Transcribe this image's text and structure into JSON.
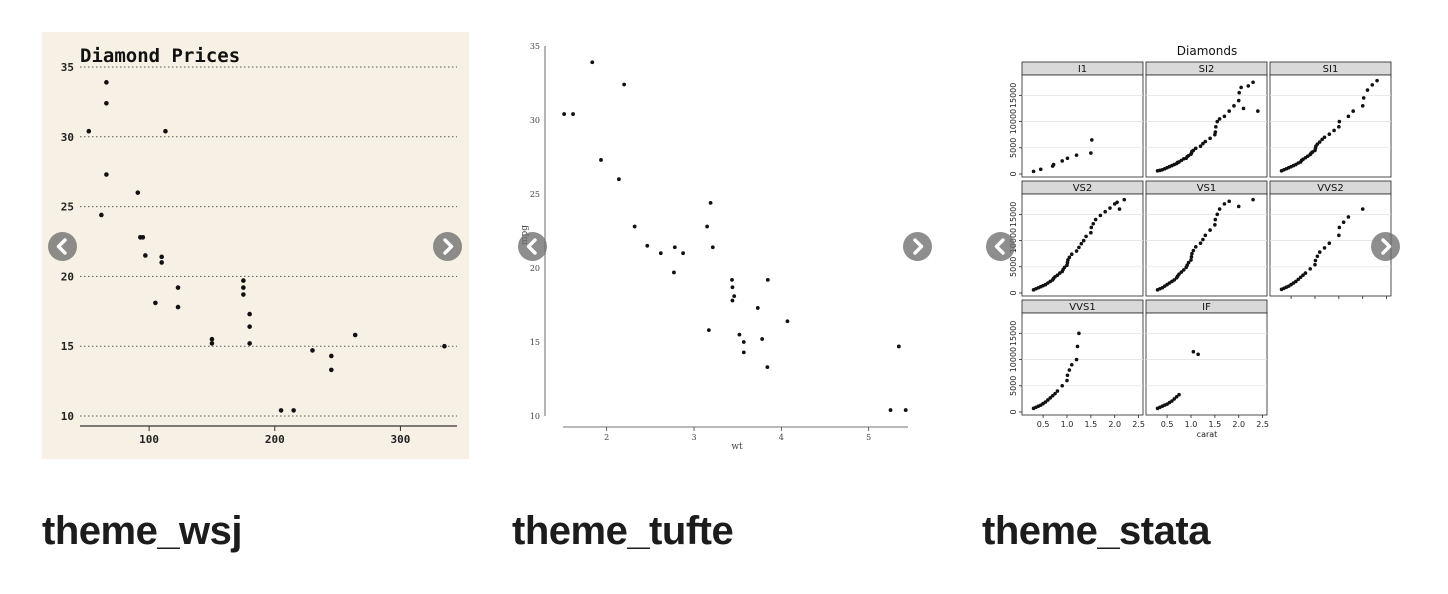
{
  "cards": [
    {
      "caption": "theme_wsj"
    },
    {
      "caption": "theme_tufte"
    },
    {
      "caption": "theme_stata"
    }
  ],
  "icons": {
    "prev": "chevron-left-circle-icon",
    "next": "chevron-right-circle-icon"
  },
  "colors": {
    "wsj_bg": "#f7f0e4",
    "caption": "#1c1c1c",
    "arrow": "#6e6e6e",
    "strip": "#d9d9d9"
  },
  "chart_data": [
    {
      "type": "scatter",
      "title": "Diamond Prices",
      "xlabel": "",
      "ylabel": "",
      "xlim": [
        45,
        345
      ],
      "ylim": [
        9.5,
        35.5
      ],
      "xticks": [
        100,
        200,
        300
      ],
      "yticks": [
        10,
        15,
        20,
        25,
        30,
        35
      ],
      "grid": "horizontal dotted",
      "x": [
        52,
        62,
        66,
        66,
        66,
        91,
        93,
        95,
        97,
        105,
        110,
        110,
        113,
        123,
        123,
        150,
        150,
        175,
        175,
        175,
        180,
        180,
        180,
        205,
        215,
        230,
        245,
        245,
        264,
        335
      ],
      "y": [
        30.4,
        24.4,
        33.9,
        32.4,
        27.3,
        26.0,
        22.8,
        22.8,
        21.5,
        18.1,
        21.4,
        21.0,
        30.4,
        19.2,
        17.8,
        15.5,
        15.2,
        19.7,
        19.2,
        18.7,
        17.3,
        16.4,
        15.2,
        10.4,
        10.4,
        14.7,
        14.3,
        13.3,
        15.8,
        15.0
      ]
    },
    {
      "type": "scatter",
      "title": "",
      "xlabel": "wt",
      "ylabel": "mpg",
      "xlim": [
        1.5,
        5.45
      ],
      "ylim": [
        10,
        35
      ],
      "xticks": [
        2,
        3,
        4,
        5
      ],
      "yticks": [
        10,
        15,
        20,
        25,
        30,
        35
      ],
      "grid": "none",
      "x": [
        1.513,
        1.615,
        1.835,
        1.935,
        2.14,
        2.2,
        2.32,
        2.465,
        2.62,
        2.77,
        2.78,
        2.875,
        3.15,
        3.17,
        3.19,
        3.215,
        3.435,
        3.44,
        3.44,
        3.46,
        3.52,
        3.57,
        3.57,
        3.73,
        3.78,
        3.84,
        3.845,
        4.07,
        5.25,
        5.345,
        5.424
      ],
      "y": [
        30.4,
        30.4,
        33.9,
        27.3,
        26.0,
        32.4,
        22.8,
        21.5,
        21.0,
        19.7,
        21.4,
        21.0,
        22.8,
        15.8,
        24.4,
        21.4,
        19.2,
        18.7,
        17.8,
        18.1,
        15.5,
        15.0,
        14.3,
        17.3,
        15.2,
        13.3,
        19.2,
        16.4,
        10.4,
        14.7,
        10.4
      ]
    },
    {
      "type": "scatter",
      "title": "Diamonds",
      "xlabel": "carat",
      "ylabel": "",
      "xlim": [
        0.1,
        2.55
      ],
      "ylim": [
        0,
        18500
      ],
      "xticks": [
        0.5,
        1.0,
        1.5,
        2.0,
        2.5
      ],
      "xticklabels": [
        "0.5",
        "1.0",
        "1.5",
        "2.0",
        "2.5"
      ],
      "yticks": [
        0,
        5000,
        10000,
        15000
      ],
      "yticklabels": [
        "0",
        "5000",
        "10000",
        "15000"
      ],
      "grid": "horizontal",
      "panels": [
        {
          "name": "I1",
          "x": [
            0.3,
            0.45,
            0.7,
            0.72,
            0.9,
            1.01,
            1.2,
            1.5,
            1.52
          ],
          "y": [
            500,
            900,
            1500,
            1800,
            2500,
            3000,
            3600,
            4000,
            6500
          ]
        },
        {
          "name": "SI2",
          "x": [
            0.3,
            0.35,
            0.4,
            0.45,
            0.5,
            0.55,
            0.6,
            0.65,
            0.7,
            0.72,
            0.75,
            0.8,
            0.85,
            0.9,
            0.92,
            0.95,
            1.0,
            1.01,
            1.02,
            1.05,
            1.1,
            1.2,
            1.25,
            1.3,
            1.4,
            1.5,
            1.51,
            1.52,
            1.55,
            1.6,
            1.7,
            1.8,
            1.9,
            2.0,
            2.01,
            2.05,
            2.1,
            2.2,
            2.3,
            2.4
          ],
          "y": [
            600,
            700,
            800,
            1000,
            1200,
            1400,
            1600,
            1800,
            2000,
            2200,
            2300,
            2600,
            2900,
            3000,
            3300,
            3500,
            3800,
            4000,
            4300,
            4500,
            4900,
            5300,
            5800,
            6200,
            6800,
            7500,
            8000,
            9000,
            10000,
            10500,
            11000,
            12000,
            13000,
            14000,
            15500,
            16500,
            12500,
            16800,
            17500,
            12000
          ]
        },
        {
          "name": "SI1",
          "x": [
            0.3,
            0.35,
            0.4,
            0.45,
            0.5,
            0.55,
            0.6,
            0.65,
            0.7,
            0.72,
            0.75,
            0.8,
            0.85,
            0.9,
            0.92,
            0.95,
            1.0,
            1.01,
            1.02,
            1.05,
            1.1,
            1.15,
            1.2,
            1.3,
            1.4,
            1.5,
            1.51,
            1.7,
            1.8,
            2.0,
            2.02,
            2.1,
            2.2,
            2.3
          ],
          "y": [
            600,
            800,
            1000,
            1200,
            1400,
            1600,
            1800,
            2100,
            2300,
            2600,
            2800,
            3100,
            3400,
            3700,
            4000,
            4200,
            4500,
            4900,
            5300,
            5700,
            6100,
            6600,
            7000,
            7600,
            8300,
            9000,
            10000,
            11000,
            12000,
            13000,
            14500,
            16000,
            17000,
            17800
          ]
        },
        {
          "name": "VS2",
          "x": [
            0.3,
            0.35,
            0.4,
            0.45,
            0.5,
            0.55,
            0.6,
            0.65,
            0.7,
            0.72,
            0.75,
            0.8,
            0.85,
            0.9,
            0.92,
            0.95,
            1.0,
            1.01,
            1.02,
            1.05,
            1.1,
            1.2,
            1.25,
            1.3,
            1.35,
            1.4,
            1.5,
            1.51,
            1.55,
            1.6,
            1.7,
            1.8,
            1.9,
            2.0,
            2.05,
            2.1,
            2.2
          ],
          "y": [
            600,
            800,
            1000,
            1200,
            1400,
            1600,
            1900,
            2200,
            2500,
            2800,
            3100,
            3400,
            3800,
            4100,
            4500,
            4900,
            5300,
            5800,
            6300,
            6800,
            7400,
            8000,
            8700,
            9400,
            10000,
            10800,
            11500,
            12500,
            13200,
            14000,
            14800,
            15500,
            16200,
            17000,
            17300,
            16000,
            17800
          ]
        },
        {
          "name": "VS1",
          "x": [
            0.3,
            0.35,
            0.4,
            0.45,
            0.5,
            0.55,
            0.6,
            0.65,
            0.7,
            0.72,
            0.75,
            0.8,
            0.85,
            0.9,
            0.92,
            0.95,
            1.0,
            1.01,
            1.02,
            1.05,
            1.1,
            1.2,
            1.25,
            1.3,
            1.4,
            1.5,
            1.51,
            1.55,
            1.6,
            1.7,
            1.8,
            2.0,
            2.3
          ],
          "y": [
            600,
            800,
            1000,
            1300,
            1600,
            1900,
            2200,
            2500,
            2900,
            3200,
            3600,
            4000,
            4400,
            4900,
            5300,
            5800,
            6300,
            6900,
            7500,
            8100,
            8800,
            9500,
            10200,
            11000,
            12000,
            13000,
            14000,
            15000,
            16000,
            17000,
            17500,
            16500,
            17800
          ]
        },
        {
          "name": "VVS2",
          "x": [
            0.3,
            0.35,
            0.4,
            0.45,
            0.5,
            0.55,
            0.6,
            0.65,
            0.7,
            0.75,
            0.8,
            0.9,
            1.0,
            1.01,
            1.05,
            1.1,
            1.2,
            1.3,
            1.5,
            1.51,
            1.6,
            1.7,
            2.0
          ],
          "y": [
            700,
            900,
            1100,
            1300,
            1600,
            1900,
            2200,
            2600,
            3000,
            3400,
            3800,
            4600,
            5400,
            6200,
            7000,
            7800,
            8600,
            9500,
            11000,
            12500,
            13500,
            14500,
            16000
          ]
        },
        {
          "name": "VVS1",
          "x": [
            0.3,
            0.35,
            0.4,
            0.45,
            0.5,
            0.55,
            0.6,
            0.65,
            0.7,
            0.75,
            0.8,
            0.9,
            1.0,
            1.01,
            1.05,
            1.1,
            1.2,
            1.22,
            1.25
          ],
          "y": [
            700,
            900,
            1100,
            1300,
            1600,
            1900,
            2300,
            2700,
            3100,
            3500,
            4000,
            5000,
            6000,
            7000,
            8000,
            9000,
            10000,
            12500,
            15000
          ]
        },
        {
          "name": "IF",
          "x": [
            0.3,
            0.35,
            0.4,
            0.45,
            0.5,
            0.55,
            0.6,
            0.65,
            0.7,
            0.75,
            1.05,
            1.15
          ],
          "y": [
            700,
            900,
            1100,
            1300,
            1500,
            1800,
            2100,
            2500,
            2900,
            3300,
            11500,
            11000
          ]
        }
      ]
    }
  ]
}
